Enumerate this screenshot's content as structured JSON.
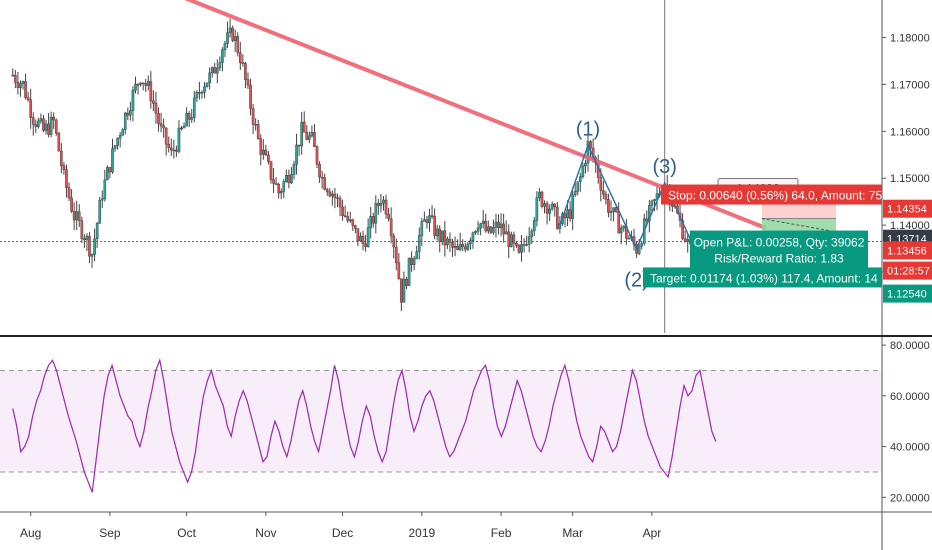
{
  "chart_data": {
    "type": "candlestick",
    "price_pane": {
      "ylim": [
        1.117,
        1.188
      ],
      "y_ticks": [
        {
          "value": 1.18,
          "label": "1.18000"
        },
        {
          "value": 1.17,
          "label": "1.17000"
        },
        {
          "value": 1.16,
          "label": "1.16000"
        },
        {
          "value": 1.15,
          "label": "1.15000"
        },
        {
          "value": 1.14,
          "label": "1.14000"
        },
        {
          "value": 1.13,
          "label": "1.13000"
        }
      ],
      "price_path": [
        {
          "d": 0,
          "p": 1.172
        },
        {
          "d": 4,
          "p": 1.17
        },
        {
          "d": 8,
          "p": 1.163
        },
        {
          "d": 12,
          "p": 1.16
        },
        {
          "d": 16,
          "p": 1.162
        },
        {
          "d": 20,
          "p": 1.15
        },
        {
          "d": 24,
          "p": 1.142
        },
        {
          "d": 28,
          "p": 1.138
        },
        {
          "d": 31,
          "p": 1.134
        },
        {
          "d": 35,
          "p": 1.147
        },
        {
          "d": 40,
          "p": 1.157
        },
        {
          "d": 45,
          "p": 1.165
        },
        {
          "d": 50,
          "p": 1.172
        },
        {
          "d": 54,
          "p": 1.168
        },
        {
          "d": 58,
          "p": 1.16
        },
        {
          "d": 62,
          "p": 1.155
        },
        {
          "d": 66,
          "p": 1.16
        },
        {
          "d": 70,
          "p": 1.164
        },
        {
          "d": 74,
          "p": 1.17
        },
        {
          "d": 78,
          "p": 1.172
        },
        {
          "d": 82,
          "p": 1.178
        },
        {
          "d": 86,
          "p": 1.181
        },
        {
          "d": 89,
          "p": 1.176
        },
        {
          "d": 92,
          "p": 1.168
        },
        {
          "d": 96,
          "p": 1.158
        },
        {
          "d": 100,
          "p": 1.152
        },
        {
          "d": 104,
          "p": 1.147
        },
        {
          "d": 108,
          "p": 1.151
        },
        {
          "d": 113,
          "p": 1.16
        },
        {
          "d": 117,
          "p": 1.158
        },
        {
          "d": 121,
          "p": 1.15
        },
        {
          "d": 125,
          "p": 1.147
        },
        {
          "d": 129,
          "p": 1.143
        },
        {
          "d": 133,
          "p": 1.139
        },
        {
          "d": 137,
          "p": 1.136
        },
        {
          "d": 140,
          "p": 1.14
        },
        {
          "d": 144,
          "p": 1.146
        },
        {
          "d": 147,
          "p": 1.143
        },
        {
          "d": 150,
          "p": 1.133
        },
        {
          "d": 152,
          "p": 1.125
        },
        {
          "d": 155,
          "p": 1.131
        },
        {
          "d": 158,
          "p": 1.136
        },
        {
          "d": 162,
          "p": 1.142
        },
        {
          "d": 166,
          "p": 1.138
        },
        {
          "d": 170,
          "p": 1.136
        },
        {
          "d": 174,
          "p": 1.134
        },
        {
          "d": 178,
          "p": 1.137
        },
        {
          "d": 182,
          "p": 1.141
        },
        {
          "d": 186,
          "p": 1.138
        },
        {
          "d": 190,
          "p": 1.14
        },
        {
          "d": 194,
          "p": 1.137
        },
        {
          "d": 198,
          "p": 1.133
        },
        {
          "d": 202,
          "p": 1.139
        },
        {
          "d": 206,
          "p": 1.146
        },
        {
          "d": 210,
          "p": 1.144
        },
        {
          "d": 214,
          "p": 1.14
        },
        {
          "d": 218,
          "p": 1.143
        },
        {
          "d": 222,
          "p": 1.15
        },
        {
          "d": 225,
          "p": 1.157
        },
        {
          "d": 228,
          "p": 1.153
        },
        {
          "d": 232,
          "p": 1.145
        },
        {
          "d": 236,
          "p": 1.141
        },
        {
          "d": 240,
          "p": 1.138
        },
        {
          "d": 244,
          "p": 1.135
        },
        {
          "d": 248,
          "p": 1.141
        },
        {
          "d": 252,
          "p": 1.146
        },
        {
          "d": 255,
          "p": 1.149
        },
        {
          "d": 258,
          "p": 1.145
        },
        {
          "d": 262,
          "p": 1.139
        },
        {
          "d": 266,
          "p": 1.133
        },
        {
          "d": 269,
          "p": 1.13
        },
        {
          "d": 272,
          "p": 1.1322
        },
        {
          "d": 275,
          "p": 1.1345
        }
      ],
      "trendline": {
        "from": {
          "d": 60,
          "p": 1.19
        },
        "to": {
          "d": 294,
          "p": 1.1395
        },
        "color": "#f06070"
      },
      "pattern_points": [
        {
          "label": "(1)",
          "d": 225,
          "p": 1.157
        },
        {
          "label": "(2)",
          "d": 244,
          "p": 1.135
        },
        {
          "label": "(3)",
          "d": 255,
          "p": 1.149
        }
      ],
      "pattern_outline": [
        {
          "d": 214,
          "p": 1.14
        },
        {
          "d": 225,
          "p": 1.157
        },
        {
          "d": 244,
          "p": 1.135
        },
        {
          "d": 255,
          "p": 1.149
        },
        {
          "d": 270,
          "p": 1.131
        }
      ],
      "horizontal_line": {
        "p": 1.1365,
        "color": "#e53935"
      },
      "vertical_line": {
        "d": 255
      },
      "position": {
        "start_d": 293,
        "end_d": 322,
        "entry": 1.1414,
        "stop": 1.1478,
        "target": 1.1297,
        "current": 1.1388
      },
      "current_price_tag": {
        "p": 1.1414,
        "label": "1.14092"
      },
      "labels": {
        "stop": "Stop: 0.00640 (0.56%) 64.0, Amount: 75",
        "pnl": "Open P&L: 0.00258, Qty: 39062",
        "rr": "Risk/Reward Ratio: 1.83",
        "target": "Target: 0.01174 (1.03%) 117.4, Amount: 14"
      },
      "axis_tags": [
        {
          "value": "1.14354",
          "p": 1.1435,
          "color": "#e53935"
        },
        {
          "value": "1.13714",
          "p": 1.1371,
          "color": "#363a45"
        },
        {
          "value": "1.13456",
          "p": 1.1346,
          "color": "#e53935"
        },
        {
          "value": "01:28:57",
          "p": 1.1303,
          "color": "#e53935"
        },
        {
          "value": "1.12540",
          "p": 1.1254,
          "color": "#089981"
        }
      ]
    },
    "rsi_pane": {
      "ylim": [
        15,
        82
      ],
      "band": [
        30,
        70
      ],
      "y_ticks": [
        {
          "value": 80,
          "label": "80.0000"
        },
        {
          "value": 60,
          "label": "60.0000"
        },
        {
          "value": 40,
          "label": "40.0000"
        },
        {
          "value": 20,
          "label": "20.0000"
        }
      ],
      "values": [
        55,
        48,
        38,
        40,
        44,
        52,
        58,
        62,
        68,
        72,
        74,
        70,
        64,
        58,
        52,
        47,
        42,
        36,
        30,
        26,
        22,
        35,
        48,
        60,
        68,
        72,
        66,
        60,
        56,
        52,
        50,
        44,
        40,
        46,
        55,
        62,
        70,
        74,
        66,
        56,
        46,
        40,
        34,
        30,
        26,
        30,
        38,
        50,
        60,
        66,
        70,
        64,
        60,
        56,
        48,
        44,
        52,
        58,
        62,
        58,
        52,
        46,
        40,
        34,
        36,
        44,
        50,
        46,
        40,
        36,
        42,
        50,
        58,
        62,
        56,
        48,
        42,
        38,
        46,
        54,
        62,
        72,
        66,
        56,
        48,
        40,
        36,
        42,
        50,
        56,
        52,
        44,
        38,
        34,
        38,
        48,
        58,
        66,
        70,
        62,
        52,
        46,
        50,
        56,
        60,
        62,
        58,
        52,
        46,
        40,
        36,
        38,
        42,
        46,
        50,
        56,
        62,
        66,
        70,
        72,
        66,
        56,
        48,
        44,
        48,
        54,
        60,
        66,
        62,
        56,
        50,
        44,
        40,
        38,
        42,
        48,
        56,
        62,
        68,
        72,
        66,
        58,
        50,
        44,
        40,
        36,
        34,
        40,
        48,
        46,
        42,
        38,
        40,
        46,
        54,
        62,
        70,
        66,
        58,
        50,
        44,
        40,
        36,
        32,
        30,
        28,
        36,
        46,
        56,
        64,
        60,
        62,
        68,
        70,
        62,
        54,
        46,
        42
      ],
      "start_d": 0,
      "end_d": 275,
      "color": "#9c27b0"
    },
    "x_ticks": [
      {
        "label": "Aug",
        "d": 7
      },
      {
        "label": "Sep",
        "d": 38
      },
      {
        "label": "Oct",
        "d": 68
      },
      {
        "label": "Nov",
        "d": 99
      },
      {
        "label": "Dec",
        "d": 129
      },
      {
        "label": "2019",
        "d": 160
      },
      {
        "label": "Feb",
        "d": 191
      },
      {
        "label": "Mar",
        "d": 219
      },
      {
        "label": "Apr",
        "d": 250
      }
    ],
    "x_day_range": [
      0,
      256
    ]
  }
}
